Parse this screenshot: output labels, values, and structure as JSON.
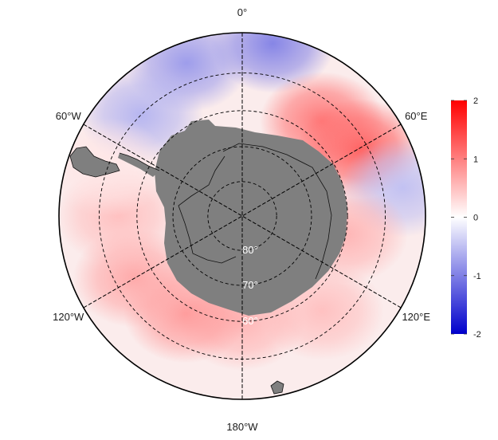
{
  "map": {
    "projection": "south-polar-stereographic",
    "land_color": "#7f7f7f",
    "ocean_outline_color": "#000000",
    "graticule_style": "dashed",
    "longitude_labels": [
      {
        "text": "0°",
        "lon": 0
      },
      {
        "text": "60°E",
        "lon": 60
      },
      {
        "text": "120°E",
        "lon": 120
      },
      {
        "text": "180°W",
        "lon": 180
      },
      {
        "text": "120°W",
        "lon": -120
      },
      {
        "text": "60°W",
        "lon": -60
      }
    ],
    "latitude_labels": [
      {
        "text": "80°",
        "lat": -80
      },
      {
        "text": "70°",
        "lat": -70
      },
      {
        "text": "60°",
        "lat": -60
      }
    ],
    "latitude_circles": [
      -80,
      -70,
      -60,
      -50
    ]
  },
  "colorbar": {
    "min": -2,
    "max": 2,
    "colors": [
      "#0000cc",
      "#ffffff",
      "#ff0000"
    ],
    "tick_values": [
      2,
      1,
      0,
      -1,
      -2
    ],
    "tick_labels": [
      "2",
      "1",
      "0",
      "-1",
      "-2"
    ]
  },
  "anomaly_field": {
    "description_of_pattern": "",
    "blobs": [
      {
        "lon": 10,
        "lat": -42,
        "value": -1.0
      },
      {
        "lon": -20,
        "lat": -45,
        "value": -0.8
      },
      {
        "lon": -45,
        "lat": -50,
        "value": -0.6
      },
      {
        "lon": 60,
        "lat": -52,
        "value": 1.3
      },
      {
        "lon": 40,
        "lat": -55,
        "value": 1.1
      },
      {
        "lon": 80,
        "lat": -45,
        "value": -0.5
      },
      {
        "lon": 100,
        "lat": -60,
        "value": 0.6
      },
      {
        "lon": 140,
        "lat": -55,
        "value": 0.5
      },
      {
        "lon": 180,
        "lat": -60,
        "value": 0.6
      },
      {
        "lon": -150,
        "lat": -58,
        "value": 0.8
      },
      {
        "lon": -120,
        "lat": -55,
        "value": 0.7
      },
      {
        "lon": -90,
        "lat": -55,
        "value": 0.5
      },
      {
        "lon": -70,
        "lat": -50,
        "value": 0.2
      }
    ]
  }
}
